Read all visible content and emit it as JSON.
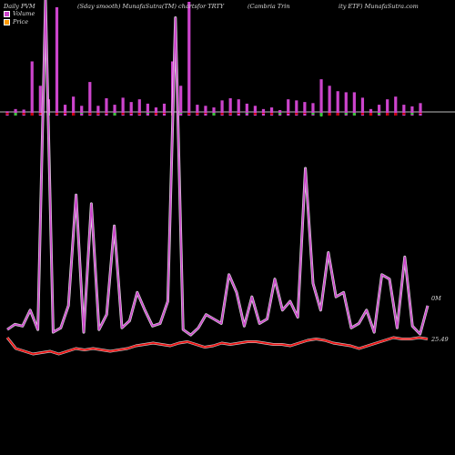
{
  "header": {
    "left": "Daily PVM",
    "mid": "(Sday smooth) MunafaSutra(TM) chartsfor TRTY",
    "right_a": "(Cambria  Trin",
    "right_b": "ity ETF) MunafaSutra.com"
  },
  "legend": [
    {
      "label": "Volume",
      "color": "#cc44cc"
    },
    {
      "label": "Price",
      "color": "#ff9900"
    }
  ],
  "chart_data": {
    "type": "bar+line",
    "volume_bars": [
      8,
      12,
      11,
      100,
      55,
      30,
      200,
      20,
      35,
      18,
      62,
      18,
      32,
      20,
      33,
      25,
      30,
      22,
      15,
      22,
      100,
      55,
      210,
      20,
      18,
      15,
      28,
      32,
      30,
      22,
      18,
      12,
      15,
      10,
      30,
      28,
      25,
      23,
      67,
      55,
      45,
      43,
      43,
      33,
      12,
      20,
      30,
      35,
      20,
      17,
      23
    ],
    "volume_marks": [
      -2,
      -3,
      -2,
      -3,
      -2,
      -3,
      -2,
      -1,
      -3,
      -1,
      -2,
      -2,
      -1,
      -3,
      -2,
      -1,
      -2,
      -1,
      -2,
      -1,
      -3,
      -1,
      -2,
      -2,
      -1,
      -3,
      -2,
      -2,
      -1,
      -1,
      -2,
      -1,
      -2,
      -2,
      -1,
      -2,
      -1,
      -2,
      -4,
      -3,
      -3,
      -2,
      -3,
      -2,
      -3,
      -2,
      -3,
      -3,
      -2,
      -2,
      -1
    ],
    "volume_line": [
      8,
      14,
      12,
      30,
      8,
      380,
      5,
      10,
      35,
      160,
      5,
      150,
      8,
      25,
      125,
      10,
      18,
      50,
      30,
      12,
      15,
      40,
      360,
      8,
      2,
      10,
      25,
      20,
      15,
      70,
      50,
      12,
      45,
      15,
      20,
      65,
      30,
      40,
      22,
      190,
      60,
      30,
      95,
      45,
      50,
      10,
      15,
      30,
      5,
      70,
      65,
      10,
      90,
      12,
      3,
      35
    ],
    "price_line": [
      25.6,
      25.2,
      25.1,
      25.0,
      25.05,
      25.1,
      25.0,
      25.1,
      25.2,
      25.15,
      25.2,
      25.15,
      25.1,
      25.15,
      25.2,
      25.3,
      25.35,
      25.4,
      25.35,
      25.3,
      25.4,
      25.45,
      25.35,
      25.25,
      25.3,
      25.4,
      25.35,
      25.4,
      25.45,
      25.45,
      25.4,
      25.35,
      25.35,
      25.3,
      25.4,
      25.5,
      25.55,
      25.5,
      25.4,
      25.35,
      25.3,
      25.2,
      25.3,
      25.4,
      25.5,
      25.6,
      25.55,
      25.55,
      25.6,
      25.55
    ],
    "series": [
      {
        "name": "Volume"
      },
      {
        "name": "Price"
      }
    ],
    "labels": {
      "volume": "0M",
      "price": "25.49"
    }
  }
}
